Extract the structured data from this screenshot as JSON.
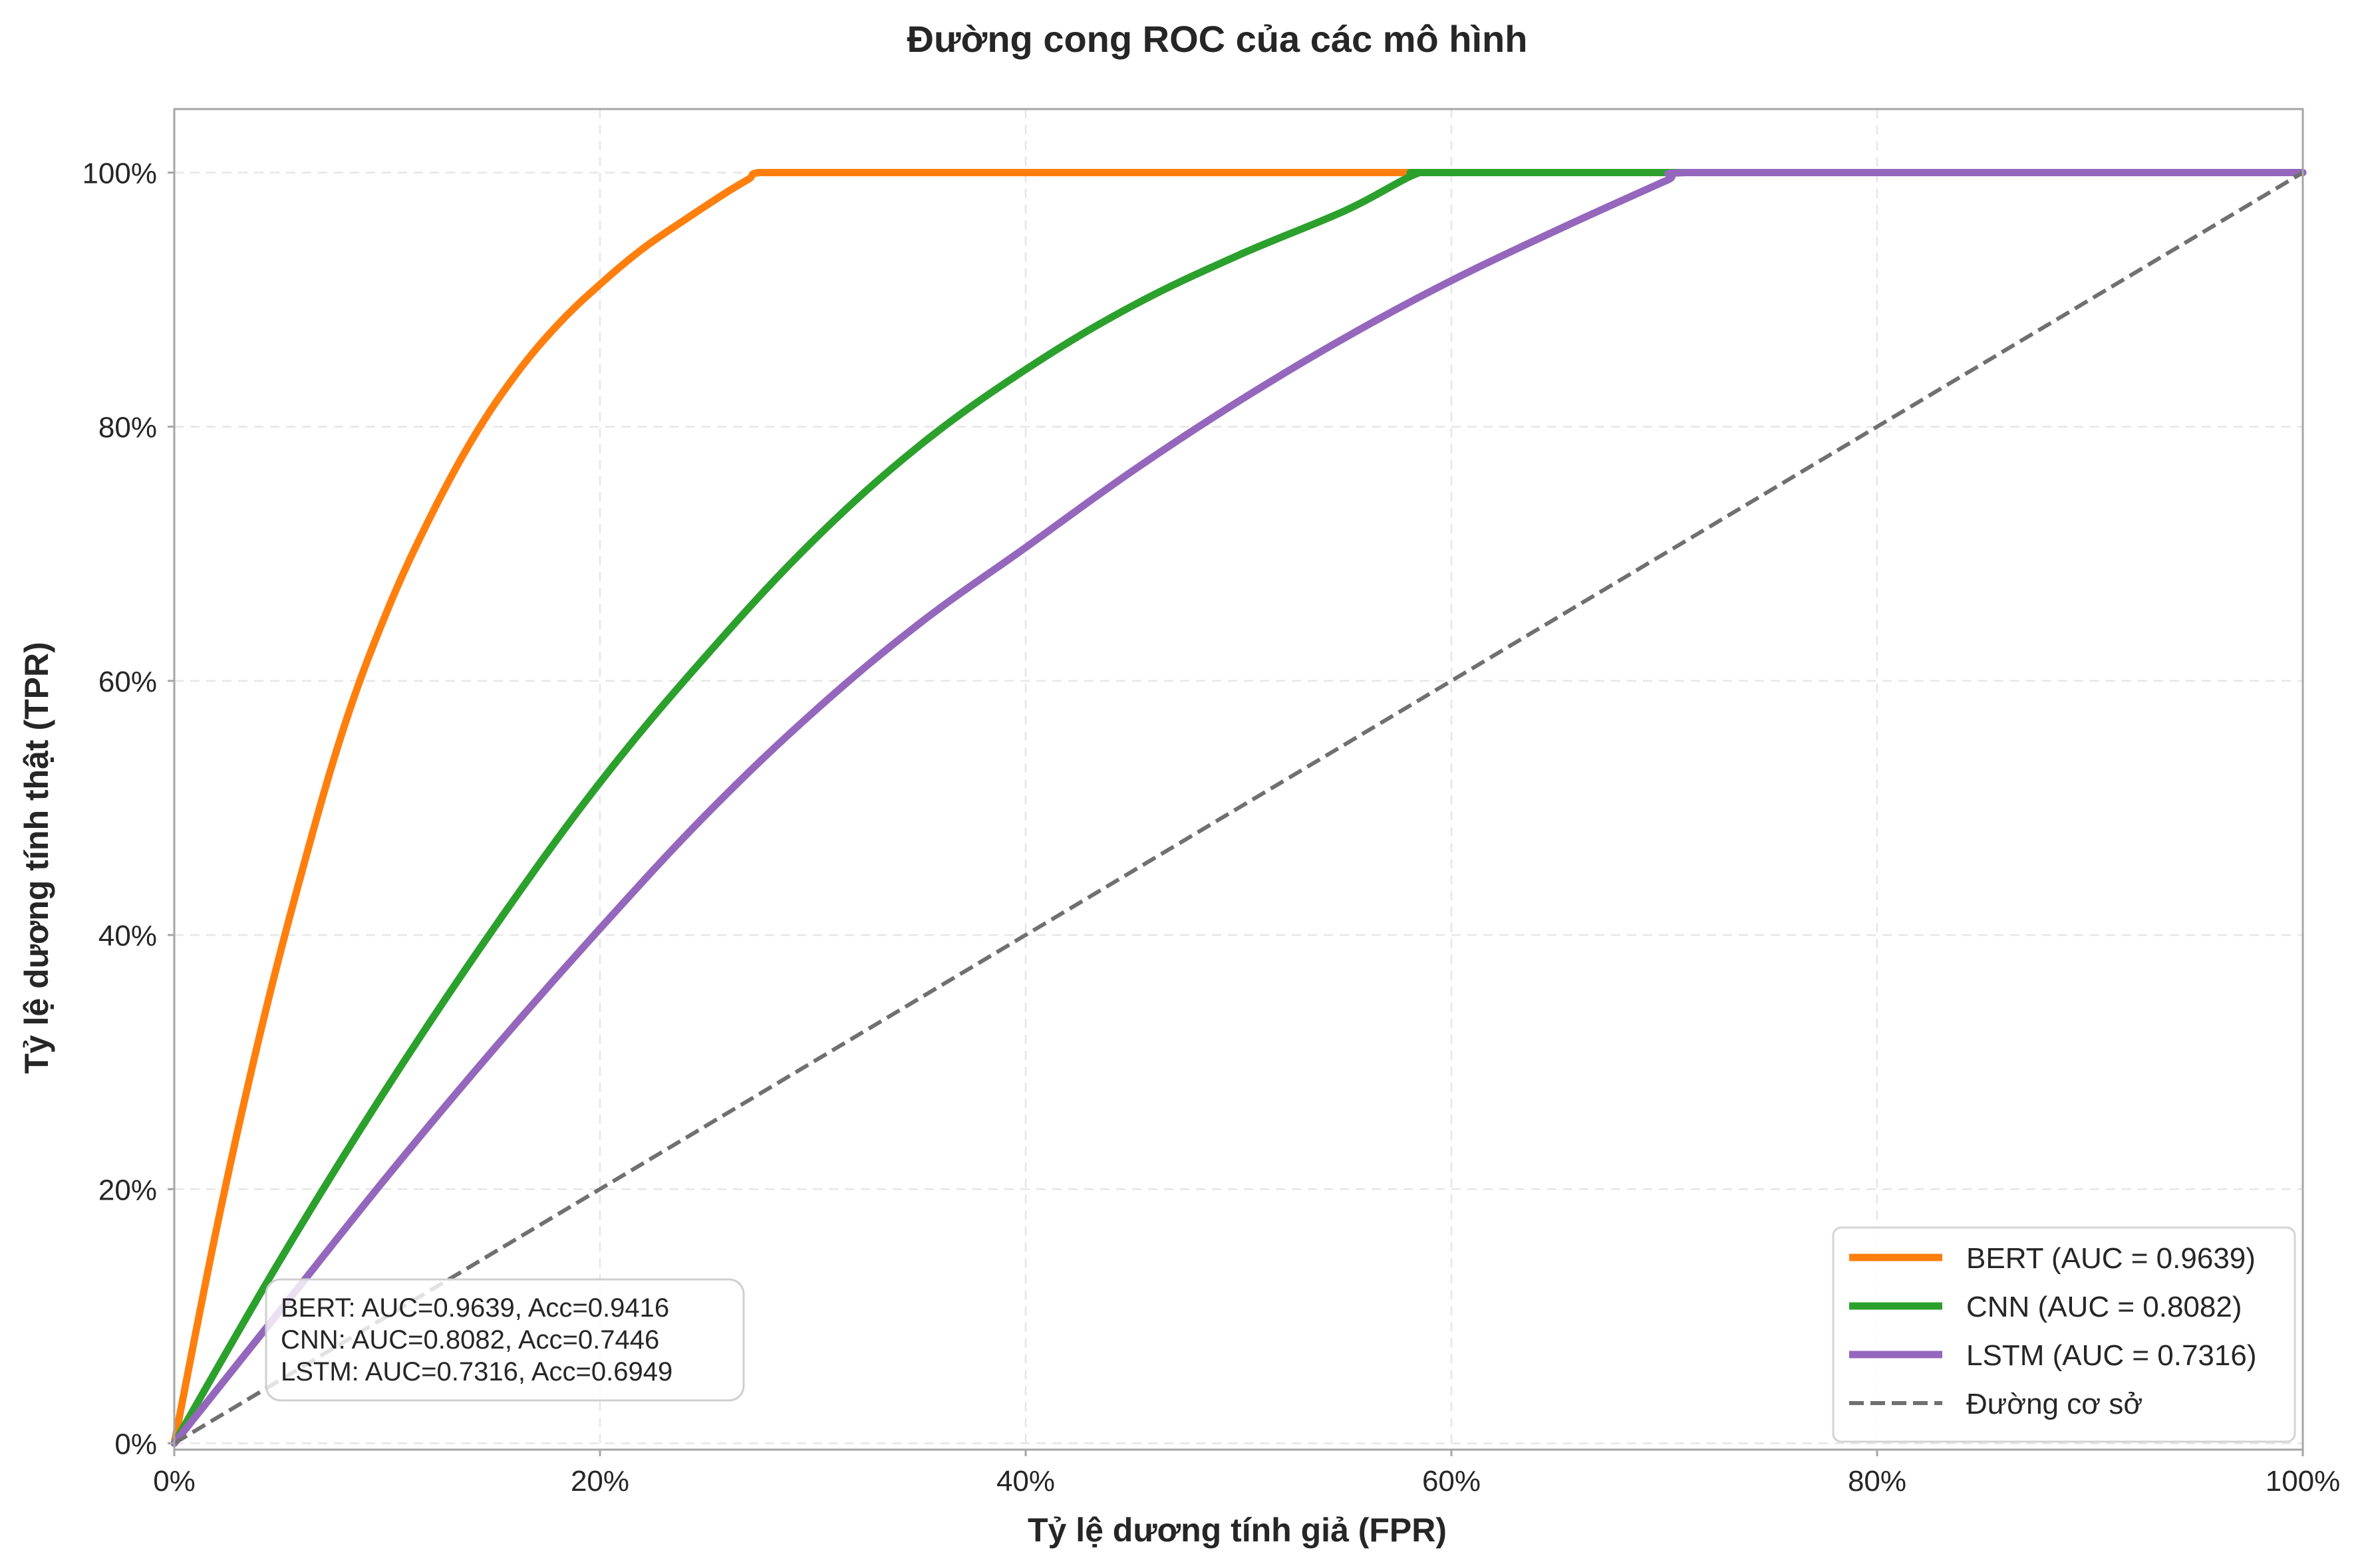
{
  "chart_data": {
    "type": "line",
    "title": "Đường cong ROC của các mô hình",
    "xlabel": "Tỷ lệ dương tính giả (FPR)",
    "ylabel": "Tỷ lệ dương tính thật (TPR)",
    "xlim": [
      0,
      1
    ],
    "ylim": [
      -0.005,
      1.05
    ],
    "grid": true,
    "x_ticks": [
      0,
      0.2,
      0.4,
      0.6,
      0.8,
      1.0
    ],
    "x_tick_labels": [
      "0%",
      "20%",
      "40%",
      "60%",
      "80%",
      "100%"
    ],
    "y_ticks": [
      0,
      0.2,
      0.4,
      0.6,
      0.8,
      1.0
    ],
    "y_tick_labels": [
      "0%",
      "20%",
      "40%",
      "60%",
      "80%",
      "100%"
    ],
    "series": [
      {
        "name": "BERT",
        "legend_label": "BERT (AUC = 0.9639)",
        "color": "#ff7f0e",
        "style": "solid",
        "x": [
          0,
          0.02,
          0.04,
          0.06,
          0.08,
          0.1,
          0.12,
          0.14,
          0.16,
          0.18,
          0.2,
          0.22,
          0.24,
          0.26,
          0.27,
          0.275,
          0.3,
          0.5,
          0.7,
          1.0
        ],
        "y": [
          0,
          0.17,
          0.32,
          0.45,
          0.565,
          0.655,
          0.728,
          0.79,
          0.84,
          0.88,
          0.912,
          0.94,
          0.963,
          0.985,
          0.995,
          1.0,
          1.0,
          1.0,
          1.0,
          1.0
        ]
      },
      {
        "name": "CNN",
        "legend_label": "CNN (AUC = 0.8082)",
        "color": "#2ca02c",
        "style": "solid",
        "x": [
          0,
          0.05,
          0.1,
          0.15,
          0.2,
          0.25,
          0.3,
          0.35,
          0.4,
          0.45,
          0.5,
          0.55,
          0.585,
          0.6,
          0.8,
          1.0
        ],
        "y": [
          0,
          0.145,
          0.28,
          0.405,
          0.52,
          0.62,
          0.71,
          0.785,
          0.845,
          0.895,
          0.935,
          0.97,
          1.0,
          1.0,
          1.0,
          1.0
        ]
      },
      {
        "name": "LSTM",
        "legend_label": "LSTM (AUC = 0.7316)",
        "color": "#9467bd",
        "style": "solid",
        "x": [
          0,
          0.05,
          0.1,
          0.15,
          0.2,
          0.25,
          0.3,
          0.35,
          0.4,
          0.45,
          0.5,
          0.55,
          0.6,
          0.65,
          0.7,
          0.71,
          0.8,
          1.0
        ],
        "y": [
          0,
          0.105,
          0.21,
          0.31,
          0.405,
          0.495,
          0.575,
          0.645,
          0.705,
          0.765,
          0.82,
          0.87,
          0.915,
          0.955,
          0.993,
          1.0,
          1.0,
          1.0
        ]
      },
      {
        "name": "Đường cơ sở",
        "legend_label": "Đường cơ sở",
        "color": "#707070",
        "style": "dashed",
        "x": [
          0,
          1
        ],
        "y": [
          0,
          1
        ]
      }
    ],
    "annotation": {
      "lines": [
        "BERT: AUC=0.9639, Acc=0.9416",
        "CNN: AUC=0.8082, Acc=0.7446",
        "LSTM: AUC=0.7316, Acc=0.6949"
      ]
    },
    "legend_position": "lower-right"
  }
}
